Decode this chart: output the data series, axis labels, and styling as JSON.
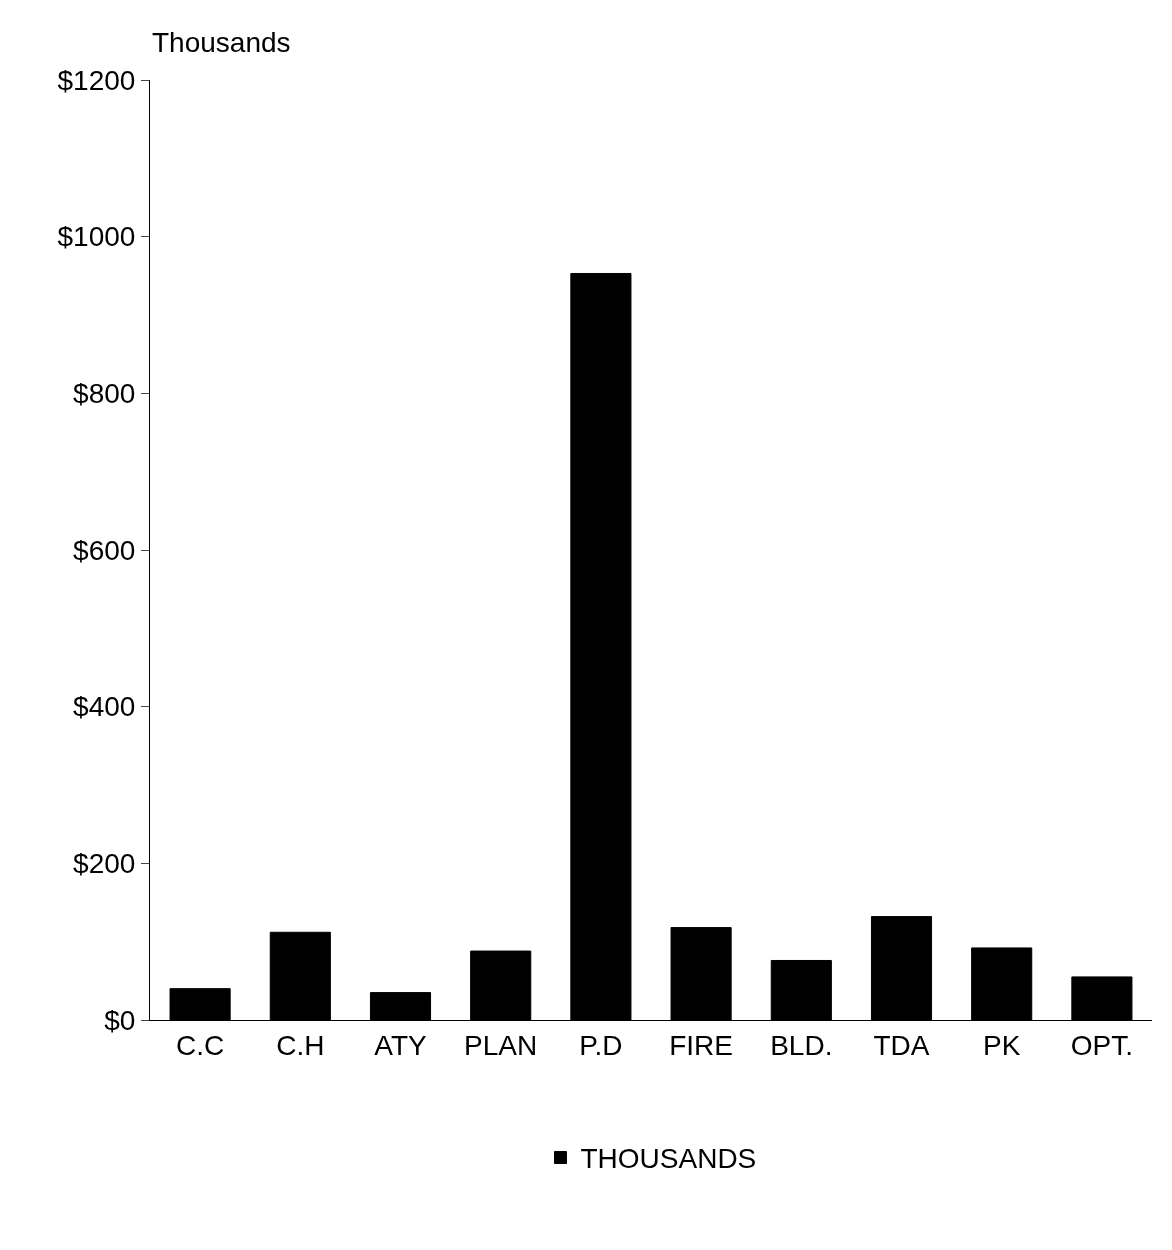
{
  "chart_data": {
    "type": "bar",
    "ylabel": "Thousands",
    "categories": [
      "C.C",
      "C.H",
      "ATY",
      "PLAN",
      "P.D",
      "FIRE",
      "BLD.",
      "TDA",
      "PK",
      "OPT."
    ],
    "series": [
      {
        "name": "THOUSANDS",
        "color": "#000000",
        "values": [
          40,
          112,
          35,
          88,
          953,
          118,
          76,
          132,
          92,
          55
        ]
      }
    ],
    "ylim": [
      0,
      1200
    ],
    "yticks": [
      {
        "value": 0,
        "label": "$0"
      },
      {
        "value": 200,
        "label": "$200"
      },
      {
        "value": 400,
        "label": "$400"
      },
      {
        "value": 600,
        "label": "$600"
      },
      {
        "value": 800,
        "label": "$800"
      },
      {
        "value": 1000,
        "label": "$1000"
      },
      {
        "value": 1200,
        "label": "$1200"
      }
    ],
    "legend": "bottom"
  }
}
